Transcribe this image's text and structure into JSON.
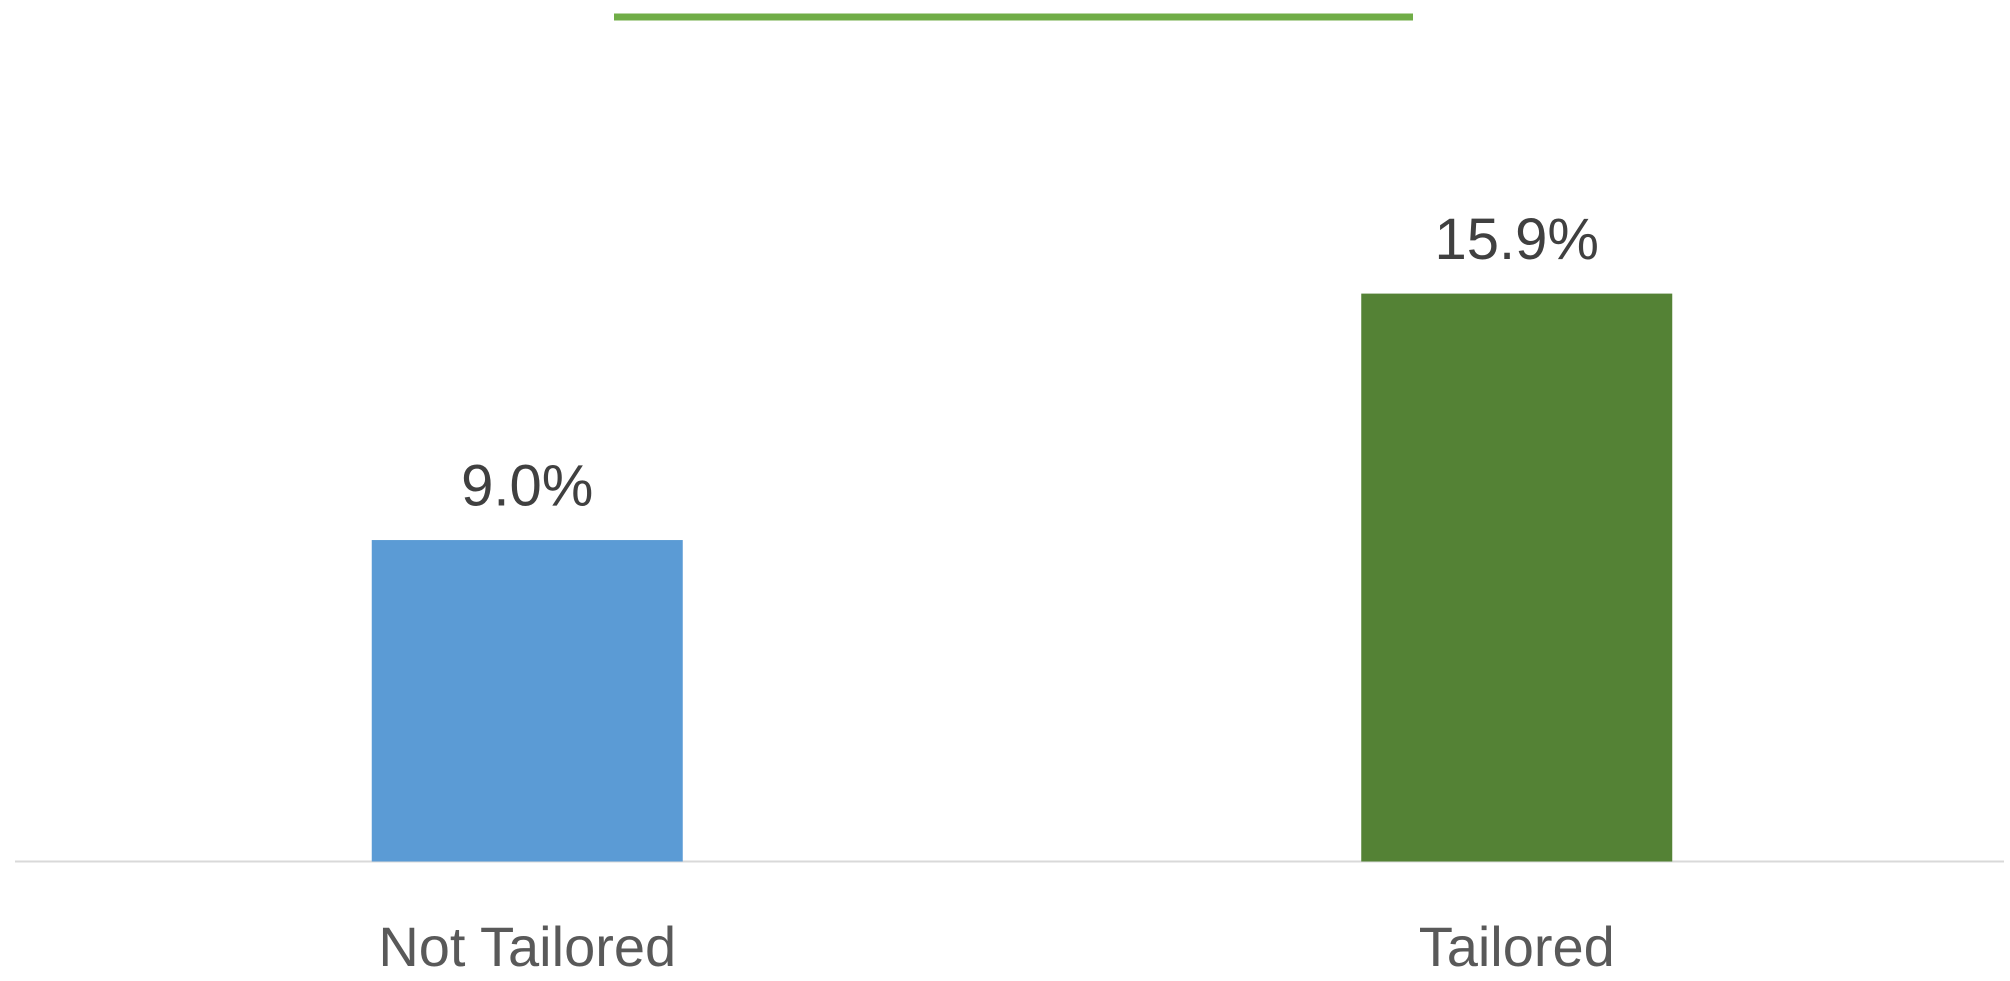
{
  "chart_data": {
    "type": "bar",
    "categories": [
      "Not Tailored",
      "Tailored"
    ],
    "values": [
      9.0,
      15.9
    ],
    "value_labels": [
      "9.0%",
      "15.9%"
    ],
    "colors": [
      "#5b9bd5",
      "#548235"
    ]
  }
}
